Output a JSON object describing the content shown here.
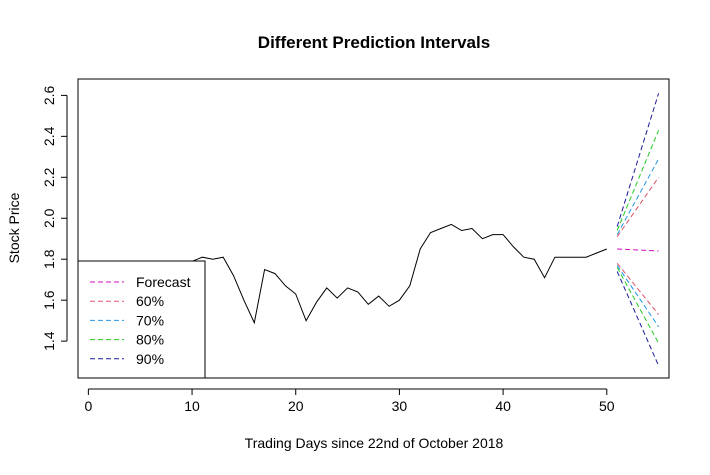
{
  "chart_data": {
    "type": "line",
    "title": "Different Prediction Intervals",
    "xlabel": "Trading Days since 22nd of October 2018",
    "ylabel": "Stock Price",
    "xlim": [
      -1,
      56
    ],
    "ylim": [
      1.22,
      2.68
    ],
    "x_ticks": [
      "0",
      "10",
      "20",
      "30",
      "40",
      "50"
    ],
    "y_ticks": [
      "1.4",
      "1.6",
      "1.8",
      "2.0",
      "2.2",
      "2.4",
      "2.6"
    ],
    "grid": false,
    "legend_position": "bottom-left",
    "series": [
      {
        "name": "",
        "color": "#000000",
        "dashed": false,
        "x": [
          1,
          2,
          3,
          4,
          5,
          6,
          7,
          8,
          9,
          10,
          11,
          12,
          13,
          14,
          15,
          16,
          17,
          18,
          19,
          20,
          21,
          22,
          23,
          24,
          25,
          26,
          27,
          28,
          29,
          30,
          31,
          32,
          33,
          34,
          35,
          36,
          37,
          38,
          39,
          40,
          41,
          42,
          43,
          44,
          45,
          46,
          47,
          48,
          49,
          50
        ],
        "y": [
          1.79,
          1.79,
          1.79,
          1.79,
          1.79,
          1.79,
          1.79,
          1.79,
          1.79,
          1.79,
          1.81,
          1.8,
          1.81,
          1.72,
          1.6,
          1.49,
          1.75,
          1.73,
          1.67,
          1.63,
          1.5,
          1.59,
          1.66,
          1.61,
          1.66,
          1.64,
          1.58,
          1.62,
          1.57,
          1.6,
          1.67,
          1.85,
          1.93,
          1.95,
          1.97,
          1.94,
          1.95,
          1.9,
          1.92,
          1.92,
          1.86,
          1.81,
          1.8,
          1.71,
          1.81,
          1.81,
          1.81,
          1.81,
          1.83,
          1.85
        ]
      },
      {
        "name": "Forecast",
        "color": "#cd0bbc",
        "dashed": true,
        "x": [
          51,
          55
        ],
        "y": [
          1.85,
          1.84
        ]
      },
      {
        "name": "60% upper",
        "color": "#df536b",
        "dashed": true,
        "x": [
          51,
          55
        ],
        "y": [
          1.91,
          2.2
        ]
      },
      {
        "name": "60% lower",
        "color": "#df536b",
        "dashed": true,
        "x": [
          51,
          55
        ],
        "y": [
          1.78,
          1.53
        ]
      },
      {
        "name": "70% upper",
        "color": "#2297e6",
        "dashed": true,
        "x": [
          51,
          55
        ],
        "y": [
          1.92,
          2.29
        ]
      },
      {
        "name": "70% lower",
        "color": "#2297e6",
        "dashed": true,
        "x": [
          51,
          55
        ],
        "y": [
          1.77,
          1.47
        ]
      },
      {
        "name": "80% upper",
        "color": "#22cc22",
        "dashed": true,
        "x": [
          51,
          55
        ],
        "y": [
          1.94,
          2.43
        ]
      },
      {
        "name": "80% lower",
        "color": "#22cc22",
        "dashed": true,
        "x": [
          51,
          55
        ],
        "y": [
          1.76,
          1.39
        ]
      },
      {
        "name": "90% upper",
        "color": "#1a1a9c",
        "dashed": true,
        "x": [
          51,
          55
        ],
        "y": [
          1.96,
          2.61
        ]
      },
      {
        "name": "90% lower",
        "color": "#1a1a9c",
        "dashed": true,
        "x": [
          51,
          55
        ],
        "y": [
          1.74,
          1.28
        ]
      }
    ],
    "legend": [
      {
        "label": "Forecast",
        "color": "#cd0bbc"
      },
      {
        "label": "60%",
        "color": "#df536b"
      },
      {
        "label": "70%",
        "color": "#2297e6"
      },
      {
        "label": "80%",
        "color": "#22cc22"
      },
      {
        "label": "90%",
        "color": "#1a1a9c"
      }
    ]
  }
}
